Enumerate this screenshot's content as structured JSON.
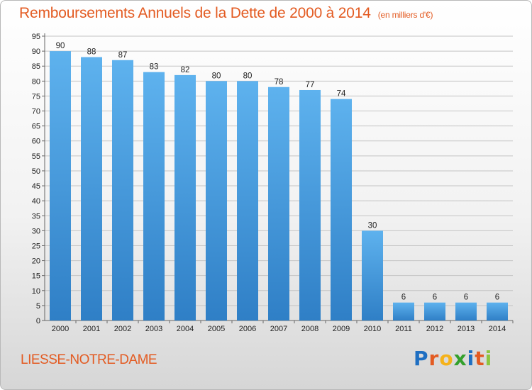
{
  "header": {
    "title": "Remboursements Annuels de la Dette de 2000 à 2014",
    "unit": "(en milliers d'€)"
  },
  "footer": {
    "place": "LIESSE-NOTRE-DAME",
    "logo_letters": [
      "P",
      "r",
      "o",
      "x",
      "i",
      "t",
      "i"
    ],
    "logo_colors": [
      "#1f6fc2",
      "#e35b22",
      "#f5b21a",
      "#33a02c",
      "#1f6fc2",
      "#e35b22",
      "#8cc63f"
    ]
  },
  "chart_data": {
    "type": "bar",
    "categories": [
      "2000",
      "2001",
      "2002",
      "2003",
      "2004",
      "2005",
      "2006",
      "2007",
      "2008",
      "2009",
      "2010",
      "2011",
      "2012",
      "2013",
      "2014"
    ],
    "values": [
      90,
      88,
      87,
      83,
      82,
      80,
      80,
      78,
      77,
      74,
      30,
      6,
      6,
      6,
      6
    ],
    "title": "Remboursements Annuels de la Dette de 2000 à 2014",
    "xlabel": "",
    "ylabel": "",
    "ylim": [
      0,
      95
    ],
    "yticks": [
      0,
      5,
      10,
      15,
      20,
      25,
      30,
      35,
      40,
      45,
      50,
      55,
      60,
      65,
      70,
      75,
      80,
      85,
      90,
      95
    ],
    "grid": true,
    "bar_color": "#4a9fe0"
  }
}
